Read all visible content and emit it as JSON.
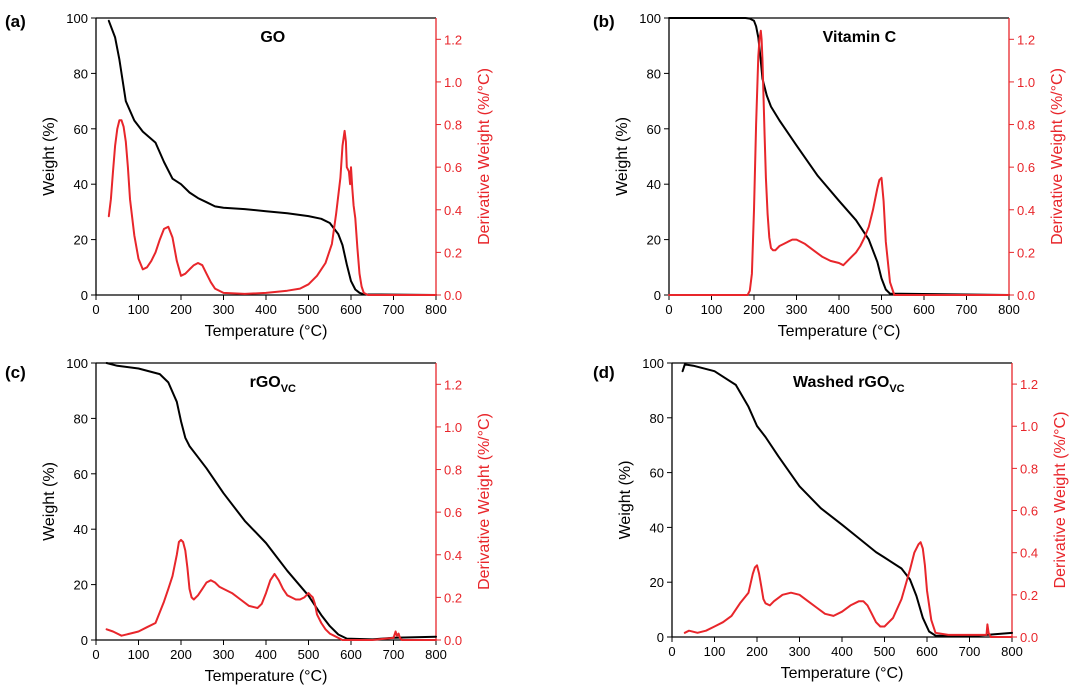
{
  "figure": {
    "colors": {
      "weight": "#000000",
      "derivative": "#e8262b"
    }
  },
  "chart_data": [
    {
      "type": "line",
      "panel_label": "(a)",
      "title": "GO",
      "title_sub": "",
      "xlabel": "Temperature (°C)",
      "ylabel_left": "Weight (%)",
      "ylabel_right": "Derivative Weight (%/°C)",
      "xlim": [
        0,
        800
      ],
      "ylim_left": [
        0,
        100
      ],
      "ylim_right": [
        0,
        1.3
      ],
      "xticks": [
        0,
        100,
        200,
        300,
        400,
        500,
        600,
        700,
        800
      ],
      "yticks_left": [
        0,
        20,
        40,
        60,
        80,
        100
      ],
      "yticks_right": [
        "0.0",
        "0.2",
        "0.4",
        "0.6",
        "0.8",
        "1.0",
        "1.2"
      ],
      "series": [
        {
          "axis": "left",
          "color": "#000000",
          "x": [
            30,
            45,
            55,
            70,
            90,
            110,
            140,
            160,
            180,
            200,
            220,
            240,
            260,
            280,
            300,
            350,
            400,
            450,
            500,
            530,
            550,
            570,
            580,
            590,
            600,
            610,
            620,
            630,
            800
          ],
          "y": [
            99,
            93,
            85,
            70,
            63,
            59,
            55,
            48,
            42,
            40,
            37,
            35,
            33.5,
            32,
            31.5,
            31,
            30.2,
            29.5,
            28.5,
            27.5,
            26,
            22,
            18,
            11,
            5,
            2,
            0.8,
            0.2,
            0
          ]
        },
        {
          "axis": "right",
          "color": "#e8262b",
          "x": [
            30,
            35,
            40,
            45,
            50,
            55,
            60,
            65,
            70,
            75,
            80,
            90,
            100,
            110,
            120,
            130,
            140,
            150,
            160,
            170,
            180,
            190,
            200,
            210,
            220,
            230,
            240,
            250,
            260,
            270,
            280,
            300,
            350,
            400,
            450,
            480,
            500,
            520,
            540,
            555,
            565,
            575,
            580,
            585,
            588,
            590,
            595,
            598,
            600,
            603,
            606,
            610,
            615,
            620,
            625,
            630,
            640,
            800
          ],
          "y": [
            0.37,
            0.45,
            0.58,
            0.7,
            0.78,
            0.82,
            0.82,
            0.79,
            0.72,
            0.6,
            0.45,
            0.28,
            0.17,
            0.12,
            0.13,
            0.16,
            0.2,
            0.26,
            0.31,
            0.32,
            0.27,
            0.16,
            0.09,
            0.1,
            0.12,
            0.14,
            0.15,
            0.14,
            0.1,
            0.06,
            0.03,
            0.01,
            0.005,
            0.01,
            0.02,
            0.03,
            0.05,
            0.09,
            0.15,
            0.24,
            0.38,
            0.55,
            0.7,
            0.77,
            0.72,
            0.6,
            0.58,
            0.52,
            0.6,
            0.5,
            0.42,
            0.36,
            0.22,
            0.1,
            0.04,
            0.01,
            0,
            0
          ]
        }
      ]
    },
    {
      "type": "line",
      "panel_label": "(b)",
      "title": "Vitamin C",
      "title_sub": "",
      "xlabel": "Temperature (°C)",
      "ylabel_left": "Weight (%)",
      "ylabel_right": "Derivative Weight (%/°C)",
      "xlim": [
        0,
        800
      ],
      "ylim_left": [
        0,
        100
      ],
      "ylim_right": [
        0,
        1.3
      ],
      "xticks": [
        0,
        100,
        200,
        300,
        400,
        500,
        600,
        700,
        800
      ],
      "yticks_left": [
        0,
        20,
        40,
        60,
        80,
        100
      ],
      "yticks_right": [
        "0.0",
        "0.2",
        "0.4",
        "0.6",
        "0.8",
        "1.0",
        "1.2"
      ],
      "series": [
        {
          "axis": "left",
          "color": "#000000",
          "x": [
            0,
            180,
            190,
            200,
            205,
            210,
            215,
            220,
            230,
            240,
            260,
            300,
            350,
            400,
            440,
            470,
            490,
            500,
            510,
            520,
            800
          ],
          "y": [
            100,
            100,
            99.8,
            99,
            97,
            93,
            86,
            78,
            72,
            68,
            63,
            54,
            43,
            34,
            27,
            20,
            12,
            6,
            2,
            0.5,
            0
          ]
        },
        {
          "axis": "right",
          "color": "#e8262b",
          "x": [
            0,
            185,
            190,
            195,
            200,
            205,
            210,
            213,
            216,
            218,
            220,
            222,
            225,
            228,
            232,
            236,
            240,
            245,
            250,
            260,
            270,
            280,
            290,
            300,
            320,
            340,
            360,
            380,
            400,
            410,
            420,
            430,
            440,
            450,
            460,
            470,
            480,
            490,
            495,
            500,
            505,
            510,
            520,
            530,
            800
          ],
          "y": [
            0,
            0,
            0.02,
            0.1,
            0.4,
            0.8,
            1.12,
            1.2,
            1.24,
            1.2,
            1.1,
            0.95,
            0.75,
            0.55,
            0.38,
            0.27,
            0.22,
            0.21,
            0.21,
            0.23,
            0.24,
            0.25,
            0.26,
            0.26,
            0.24,
            0.21,
            0.18,
            0.16,
            0.15,
            0.14,
            0.16,
            0.18,
            0.2,
            0.23,
            0.27,
            0.32,
            0.4,
            0.5,
            0.54,
            0.55,
            0.44,
            0.25,
            0.06,
            0,
            0
          ]
        }
      ]
    },
    {
      "type": "line",
      "panel_label": "(c)",
      "title": "rGO",
      "title_sub": "VC",
      "xlabel": "Temperature (°C)",
      "ylabel_left": "Weight (%)",
      "ylabel_right": "Derivative Weight (%/°C)",
      "xlim": [
        0,
        800
      ],
      "ylim_left": [
        0,
        100
      ],
      "ylim_right": [
        0,
        1.3
      ],
      "xticks": [
        0,
        100,
        200,
        300,
        400,
        500,
        600,
        700,
        800
      ],
      "yticks_left": [
        0,
        20,
        40,
        60,
        80,
        100
      ],
      "yticks_right": [
        "0.0",
        "0.2",
        "0.4",
        "0.6",
        "0.8",
        "1.0",
        "1.2"
      ],
      "series": [
        {
          "axis": "left",
          "color": "#000000",
          "x": [
            25,
            50,
            100,
            150,
            170,
            190,
            200,
            210,
            220,
            240,
            260,
            300,
            350,
            400,
            420,
            450,
            500,
            530,
            550,
            570,
            590,
            650,
            700,
            800
          ],
          "y": [
            100,
            99,
            98,
            96,
            93,
            86,
            79,
            73,
            70,
            66,
            62,
            53,
            43,
            35,
            31,
            25,
            16,
            9,
            5,
            2,
            0.5,
            0.2,
            0.8,
            1.2
          ]
        },
        {
          "axis": "right",
          "color": "#e8262b",
          "x": [
            25,
            40,
            60,
            80,
            100,
            120,
            140,
            160,
            170,
            180,
            190,
            195,
            200,
            205,
            210,
            215,
            220,
            225,
            230,
            240,
            250,
            260,
            270,
            280,
            290,
            300,
            320,
            340,
            360,
            380,
            390,
            400,
            410,
            420,
            430,
            440,
            450,
            460,
            470,
            480,
            490,
            500,
            505,
            510,
            515,
            520,
            530,
            540,
            550,
            560,
            570,
            580,
            600,
            650,
            700,
            705,
            708,
            712,
            715,
            720,
            800
          ],
          "y": [
            0.05,
            0.04,
            0.02,
            0.03,
            0.04,
            0.06,
            0.08,
            0.18,
            0.24,
            0.3,
            0.4,
            0.46,
            0.47,
            0.46,
            0.42,
            0.34,
            0.24,
            0.2,
            0.19,
            0.21,
            0.24,
            0.27,
            0.28,
            0.27,
            0.25,
            0.24,
            0.22,
            0.19,
            0.16,
            0.15,
            0.17,
            0.22,
            0.28,
            0.31,
            0.28,
            0.24,
            0.21,
            0.2,
            0.19,
            0.19,
            0.2,
            0.22,
            0.21,
            0.2,
            0.17,
            0.12,
            0.08,
            0.05,
            0.03,
            0.02,
            0.01,
            0,
            0,
            0,
            0.01,
            0.04,
            0.02,
            0.03,
            0.01,
            0,
            0
          ]
        }
      ]
    },
    {
      "type": "line",
      "panel_label": "(d)",
      "title": "Washed rGO",
      "title_sub": "VC",
      "xlabel": "Temperature (°C)",
      "ylabel_left": "Weight (%)",
      "ylabel_right": "Derivative Weight (%/°C)",
      "xlim": [
        0,
        800
      ],
      "ylim_left": [
        0,
        100
      ],
      "ylim_right": [
        0,
        1.3
      ],
      "xticks": [
        0,
        100,
        200,
        300,
        400,
        500,
        600,
        700,
        800
      ],
      "yticks_left": [
        0,
        20,
        40,
        60,
        80,
        100
      ],
      "yticks_right": [
        "0.0",
        "0.2",
        "0.4",
        "0.6",
        "0.8",
        "1.0",
        "1.2"
      ],
      "series": [
        {
          "axis": "left",
          "color": "#000000",
          "x": [
            25,
            30,
            50,
            100,
            150,
            180,
            200,
            220,
            250,
            300,
            350,
            400,
            440,
            480,
            500,
            540,
            560,
            575,
            590,
            605,
            620,
            700,
            800
          ],
          "y": [
            97,
            99.5,
            99,
            97,
            92,
            84,
            77,
            73,
            66,
            55,
            47,
            41,
            36,
            31,
            29,
            25,
            21,
            15,
            7,
            2,
            0.5,
            0.3,
            1.5
          ]
        },
        {
          "axis": "right",
          "color": "#e8262b",
          "x": [
            30,
            40,
            60,
            80,
            100,
            120,
            140,
            160,
            180,
            190,
            195,
            200,
            205,
            210,
            215,
            220,
            230,
            240,
            260,
            280,
            300,
            320,
            340,
            360,
            380,
            400,
            420,
            440,
            450,
            460,
            470,
            480,
            490,
            500,
            520,
            540,
            560,
            570,
            580,
            585,
            590,
            595,
            600,
            610,
            620,
            650,
            700,
            740,
            742,
            745,
            750,
            800
          ],
          "y": [
            0.02,
            0.03,
            0.02,
            0.03,
            0.05,
            0.07,
            0.1,
            0.16,
            0.21,
            0.3,
            0.33,
            0.34,
            0.3,
            0.24,
            0.18,
            0.16,
            0.15,
            0.17,
            0.2,
            0.21,
            0.2,
            0.17,
            0.14,
            0.11,
            0.1,
            0.12,
            0.15,
            0.17,
            0.17,
            0.15,
            0.11,
            0.07,
            0.05,
            0.05,
            0.09,
            0.18,
            0.32,
            0.4,
            0.44,
            0.45,
            0.42,
            0.34,
            0.22,
            0.08,
            0.02,
            0.01,
            0.01,
            0.01,
            0.06,
            0.02,
            0,
            0
          ]
        }
      ]
    }
  ]
}
